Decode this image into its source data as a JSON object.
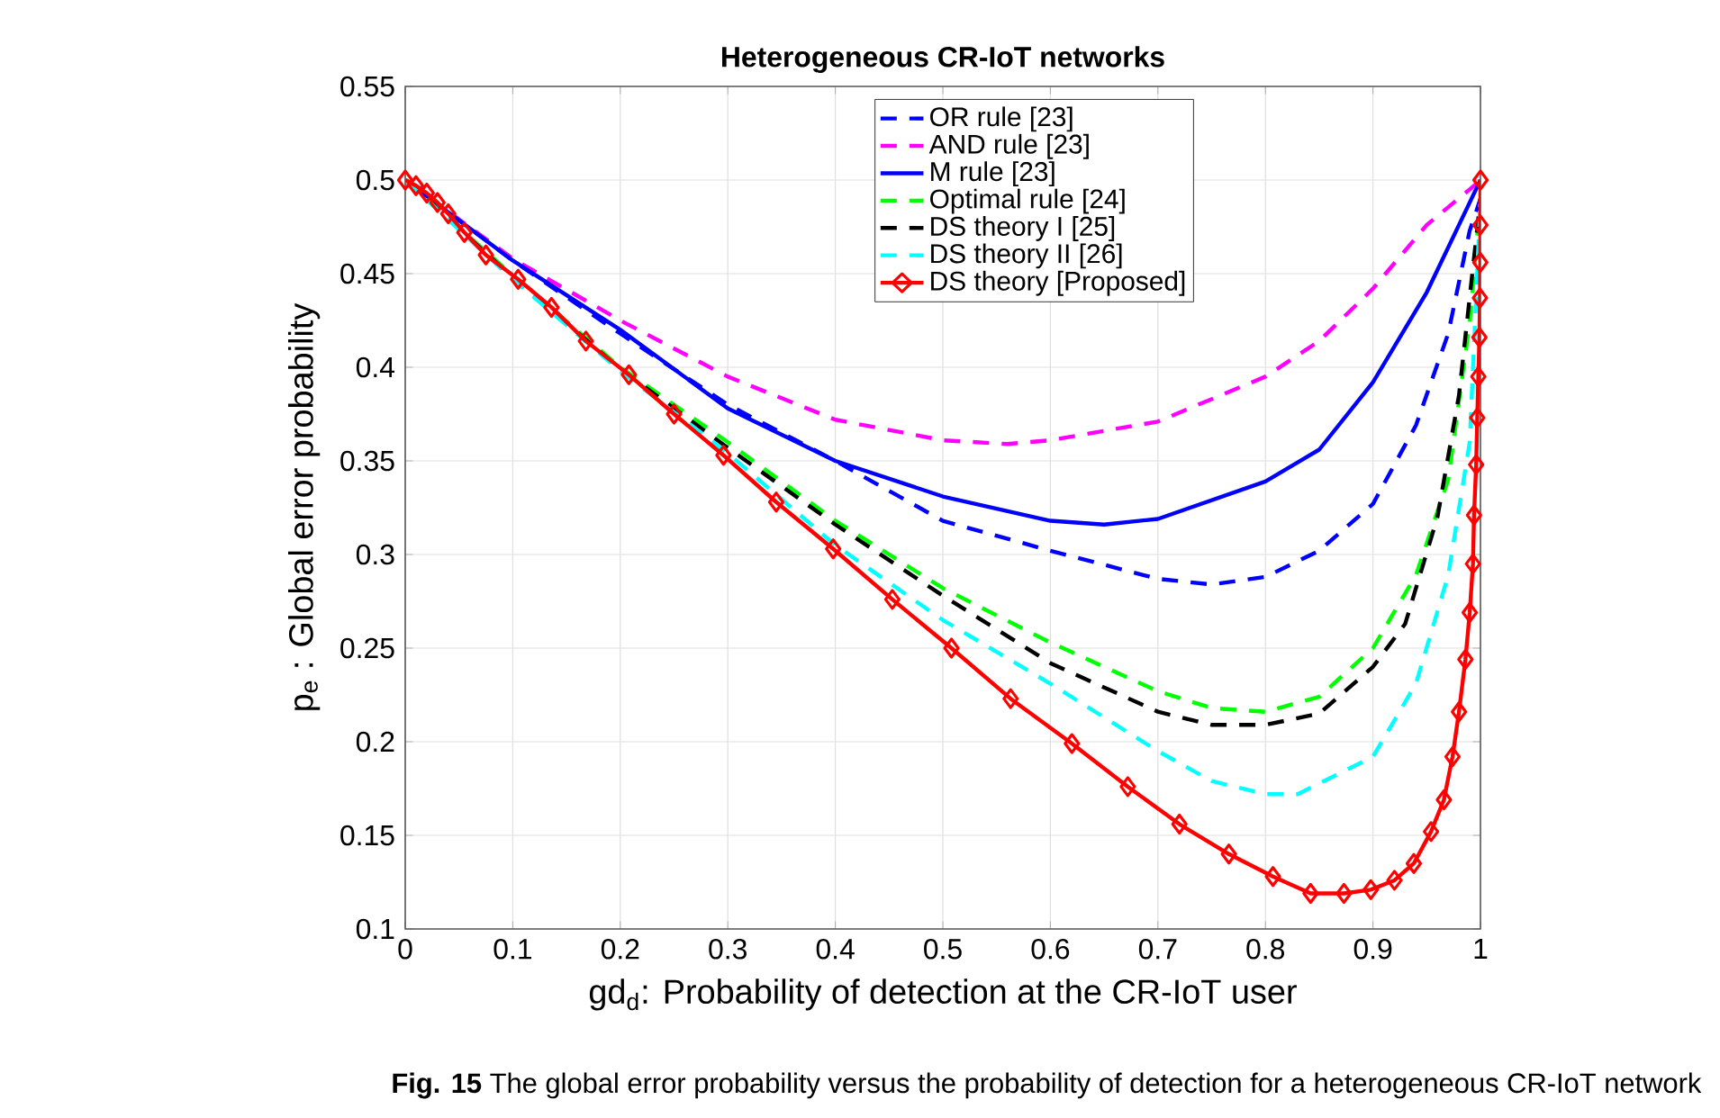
{
  "chart_data": {
    "type": "line",
    "title": "Heterogeneous CR-IoT networks",
    "xlabel": "gd$_{d}$: Probability of detection at the CR-IoT user",
    "ylabel": "p$_{e}$ : Global error probability",
    "annotations": [
      "**Fig. 15** The global error probability versus the probability of detection for a heterogeneous CR-IoT network"
    ],
    "xlim": [
      0,
      1
    ],
    "ylim": [
      0.1,
      0.55
    ],
    "xticks": [
      0,
      0.1,
      0.2,
      0.3,
      0.4,
      0.5,
      0.6,
      0.7,
      0.8,
      0.9,
      1
    ],
    "yticks": [
      0.1,
      0.15,
      0.2,
      0.25,
      0.3,
      0.35,
      0.4,
      0.45,
      0.5,
      0.55
    ],
    "grid": true,
    "legend": "top",
    "series": [
      {
        "name": "OR rule [23]",
        "color": "#0000ff",
        "line_style": "dashed",
        "marker": "none",
        "x": [
          0,
          0.1,
          0.2,
          0.3,
          0.4,
          0.5,
          0.6,
          0.7,
          0.75,
          0.8,
          0.85,
          0.9,
          0.94,
          0.97,
          0.99,
          1
        ],
        "values": [
          0.5,
          0.457,
          0.418,
          0.38,
          0.35,
          0.318,
          0.302,
          0.287,
          0.284,
          0.288,
          0.302,
          0.327,
          0.369,
          0.418,
          0.473,
          0.49
        ]
      },
      {
        "name": "AND rule [23]",
        "color": "#ff00ff",
        "line_style": "dashed",
        "marker": "none",
        "x": [
          0,
          0.1,
          0.2,
          0.3,
          0.4,
          0.5,
          0.56,
          0.6,
          0.7,
          0.8,
          0.85,
          0.9,
          0.95,
          0.99,
          1
        ],
        "values": [
          0.5,
          0.458,
          0.425,
          0.395,
          0.372,
          0.361,
          0.359,
          0.361,
          0.371,
          0.395,
          0.414,
          0.442,
          0.476,
          0.495,
          0.5
        ]
      },
      {
        "name": "M rule [23]",
        "color": "#0000ff",
        "line_style": "solid",
        "marker": "none",
        "x": [
          0,
          0.1,
          0.2,
          0.3,
          0.4,
          0.5,
          0.6,
          0.65,
          0.7,
          0.8,
          0.85,
          0.9,
          0.95,
          0.98,
          1
        ],
        "values": [
          0.5,
          0.457,
          0.42,
          0.378,
          0.35,
          0.331,
          0.318,
          0.316,
          0.319,
          0.339,
          0.356,
          0.392,
          0.44,
          0.476,
          0.5
        ]
      },
      {
        "name": "Optimal rule [24]",
        "color": "#00ff00",
        "line_style": "dashed",
        "marker": "none",
        "x": [
          0,
          0.1,
          0.2,
          0.3,
          0.4,
          0.5,
          0.6,
          0.7,
          0.75,
          0.8,
          0.85,
          0.9,
          0.94,
          0.97,
          0.99,
          1
        ],
        "values": [
          0.5,
          0.449,
          0.4,
          0.36,
          0.318,
          0.282,
          0.253,
          0.227,
          0.218,
          0.216,
          0.224,
          0.25,
          0.289,
          0.34,
          0.424,
          0.49
        ]
      },
      {
        "name": "DS theory I [25]",
        "color": "#000000",
        "line_style": "dashed",
        "marker": "none",
        "x": [
          0,
          0.1,
          0.2,
          0.3,
          0.4,
          0.5,
          0.6,
          0.7,
          0.75,
          0.8,
          0.85,
          0.9,
          0.93,
          0.96,
          0.98,
          1
        ],
        "values": [
          0.5,
          0.448,
          0.399,
          0.357,
          0.316,
          0.278,
          0.242,
          0.216,
          0.209,
          0.209,
          0.215,
          0.24,
          0.263,
          0.32,
          0.385,
          0.49
        ]
      },
      {
        "name": "DS theory II [26]",
        "color": "#00ffff",
        "line_style": "dashed",
        "marker": "none",
        "x": [
          0,
          0.1,
          0.2,
          0.3,
          0.4,
          0.5,
          0.6,
          0.7,
          0.75,
          0.8,
          0.83,
          0.9,
          0.94,
          0.97,
          0.99,
          1
        ],
        "values": [
          0.5,
          0.447,
          0.398,
          0.354,
          0.305,
          0.265,
          0.231,
          0.195,
          0.179,
          0.172,
          0.172,
          0.192,
          0.231,
          0.289,
          0.36,
          0.49
        ]
      },
      {
        "name": "DS theory [Proposed]",
        "color": "#ff0000",
        "line_style": "solid",
        "marker": "diamond",
        "x": [
          0,
          0.01,
          0.02,
          0.03,
          0.04,
          0.055,
          0.075,
          0.105,
          0.136,
          0.168,
          0.208,
          0.25,
          0.296,
          0.345,
          0.398,
          0.453,
          0.508,
          0.563,
          0.62,
          0.672,
          0.72,
          0.766,
          0.807,
          0.842,
          0.873,
          0.898,
          0.92,
          0.938,
          0.954,
          0.966,
          0.974,
          0.98,
          0.986,
          0.99,
          0.993,
          0.994,
          0.996,
          0.997,
          0.998,
          0.999,
          0.9995,
          0.9998,
          0.9999,
          1
        ],
        "values": [
          0.5,
          0.497,
          0.493,
          0.488,
          0.482,
          0.472,
          0.46,
          0.447,
          0.432,
          0.414,
          0.396,
          0.375,
          0.353,
          0.328,
          0.303,
          0.276,
          0.25,
          0.223,
          0.199,
          0.176,
          0.156,
          0.14,
          0.128,
          0.119,
          0.119,
          0.121,
          0.126,
          0.135,
          0.152,
          0.169,
          0.192,
          0.216,
          0.244,
          0.269,
          0.295,
          0.321,
          0.348,
          0.373,
          0.395,
          0.416,
          0.437,
          0.456,
          0.476,
          0.5
        ]
      }
    ]
  }
}
